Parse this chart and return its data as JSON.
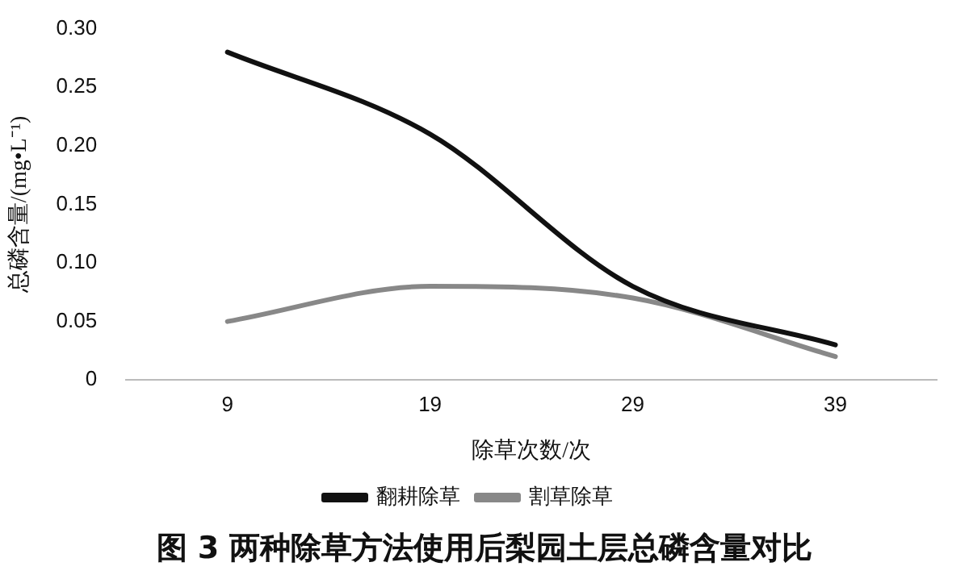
{
  "chart_data": {
    "type": "line",
    "title": "图 3  两种除草方法使用后梨园土层总磷含量对比",
    "xlabel": "除草次数/次",
    "ylabel": "总磷含量/(mg•L⁻¹)",
    "categories": [
      "9",
      "19",
      "29",
      "39"
    ],
    "series": [
      {
        "name": "翻耕除草",
        "color": "#111111",
        "values": [
          0.28,
          0.21,
          0.08,
          0.03
        ]
      },
      {
        "name": "割草除草",
        "color": "#888888",
        "values": [
          0.05,
          0.08,
          0.07,
          0.02
        ]
      }
    ],
    "ylim": [
      0,
      0.3
    ],
    "yticks": [
      0,
      0.05,
      {
        "value": 0.1,
        "label": "0.10"
      },
      0.15,
      {
        "value": 0.2,
        "label": "0.20"
      },
      0.25,
      {
        "value": 0.3,
        "label": "0.30"
      }
    ],
    "grid": false,
    "legend": "bottom",
    "marker": "none",
    "line_style": "solid"
  }
}
